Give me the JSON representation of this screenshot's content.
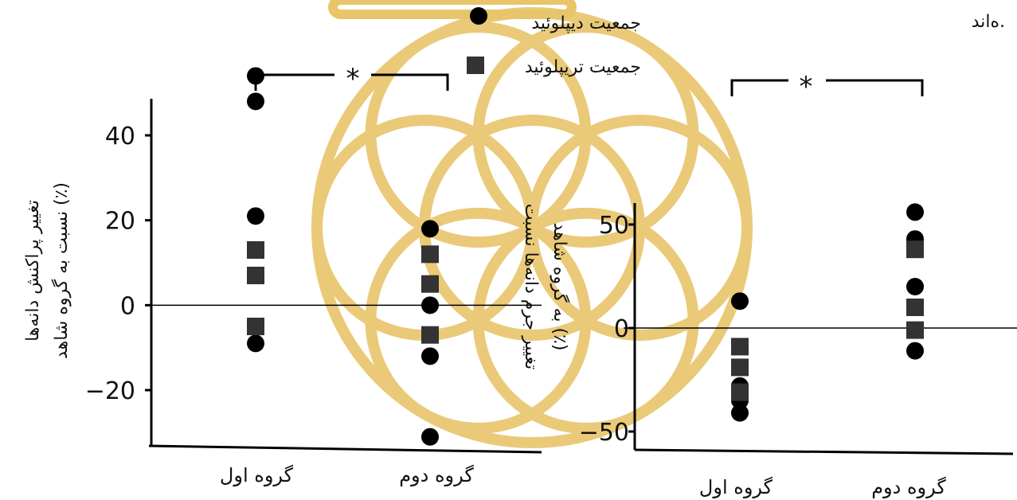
{
  "caption_fragment": "ه‌اند.",
  "legend": [
    {
      "label": "جمعیت دیپلوئید",
      "marker": "circle"
    },
    {
      "label": "جمعیت تریپلوئید",
      "marker": "square"
    }
  ],
  "colors": {
    "marker": "#000000",
    "square": "#333333",
    "axis": "#000000",
    "watermark": "#e8c56a"
  },
  "chart_data": [
    {
      "type": "scatter",
      "ylabel_lines": [
        "تغییر پراکنش دانه‌ها",
        "نسبت به گروه شاهد (٪)"
      ],
      "categories": [
        "گروه اول",
        "گروه دوم"
      ],
      "yticks": [
        -20,
        0,
        20,
        40
      ],
      "ylim": [
        -38,
        62
      ],
      "zero_line": true,
      "significance": "*",
      "series": [
        {
          "name": "جمعیت دیپلوئید",
          "marker": "circle",
          "points": [
            {
              "group": 0,
              "y": 54
            },
            {
              "group": 0,
              "y": 48
            },
            {
              "group": 0,
              "y": 21
            },
            {
              "group": 0,
              "y": -9
            },
            {
              "group": 1,
              "y": 18
            },
            {
              "group": 1,
              "y": 0
            },
            {
              "group": 1,
              "y": -12
            },
            {
              "group": 1,
              "y": -31
            }
          ]
        },
        {
          "name": "جمعیت تریپلوئید",
          "marker": "square",
          "points": [
            {
              "group": 0,
              "y": 13
            },
            {
              "group": 0,
              "y": 7
            },
            {
              "group": 0,
              "y": -5
            },
            {
              "group": 1,
              "y": 12
            },
            {
              "group": 1,
              "y": 5
            },
            {
              "group": 1,
              "y": -7
            }
          ]
        }
      ]
    },
    {
      "type": "scatter",
      "ylabel_lines": [
        "تغییر جرم دانه‌ها نسبت",
        "به گروه شاهد (٪)"
      ],
      "categories": [
        "گروه اول",
        "گروه دوم"
      ],
      "yticks": [
        -50,
        0,
        50
      ],
      "ylim": [
        -50,
        65
      ],
      "zero_line": true,
      "significance": "*",
      "series": [
        {
          "name": "جمعیت دیپلوئید",
          "marker": "circle",
          "points": [
            {
              "group": 0,
              "y": 13
            },
            {
              "group": 0,
              "y": -28
            },
            {
              "group": 0,
              "y": -35
            },
            {
              "group": 0,
              "y": -41
            },
            {
              "group": 1,
              "y": 56
            },
            {
              "group": 1,
              "y": 43
            },
            {
              "group": 1,
              "y": 20
            },
            {
              "group": 1,
              "y": -11
            }
          ]
        },
        {
          "name": "جمعیت تریپلوئید",
          "marker": "square",
          "points": [
            {
              "group": 0,
              "y": -9
            },
            {
              "group": 0,
              "y": -19
            },
            {
              "group": 0,
              "y": -31
            },
            {
              "group": 1,
              "y": 38
            },
            {
              "group": 1,
              "y": 10
            },
            {
              "group": 1,
              "y": -1
            }
          ]
        }
      ]
    }
  ]
}
